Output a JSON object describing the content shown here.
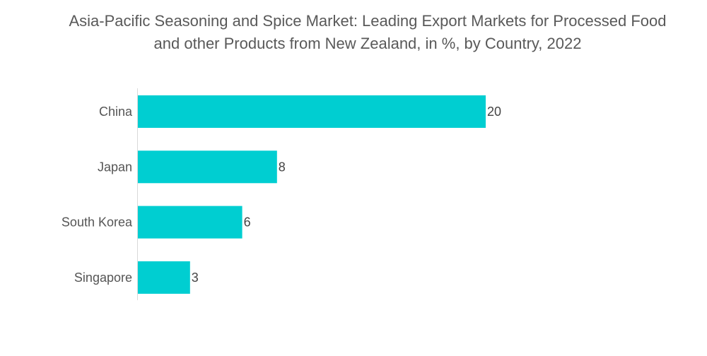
{
  "chart_data": {
    "type": "bar",
    "orientation": "horizontal",
    "title_lines": [
      "Asia-Pacific Seasoning and Spice Market: Leading Export Markets for Processed Food",
      "and other Products from New Zealand, in %, by Country, 2022"
    ],
    "categories": [
      "China",
      "Japan",
      "South Korea",
      "Singapore"
    ],
    "values": [
      20,
      8,
      6,
      3
    ],
    "xlabel": "",
    "ylabel": "",
    "xlim": [
      0,
      20
    ],
    "grid": false,
    "legend": "none",
    "bar_color": "#00CED1"
  }
}
